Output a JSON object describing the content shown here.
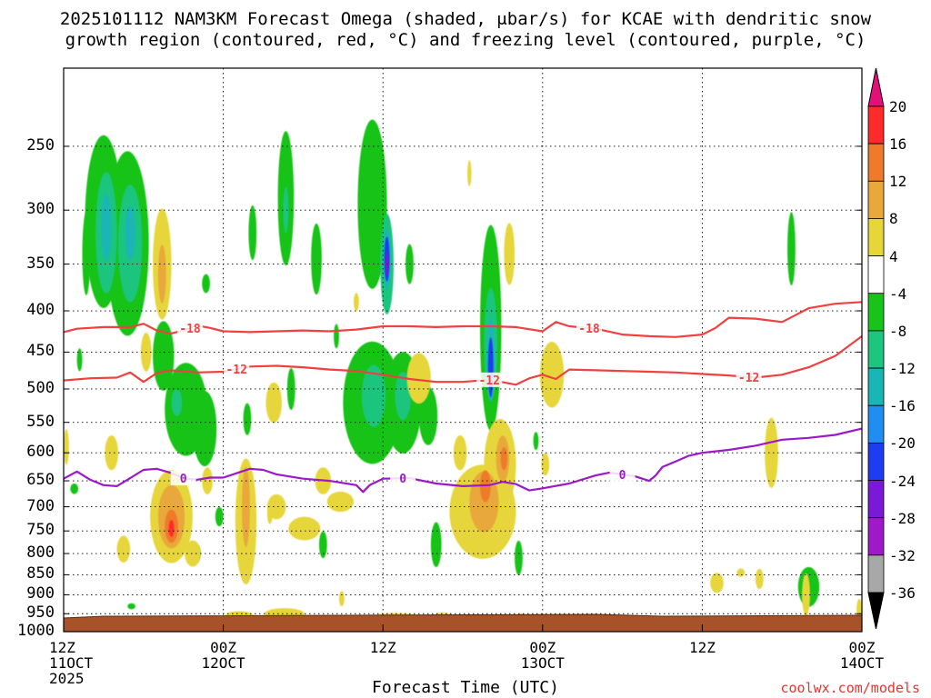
{
  "title_line1": "2025101112 NAM3KM Forecast Omega (shaded, μbar/s) for KCAE with dendritic snow",
  "title_line2": "growth region (contoured, red, °C) and freezing level (contoured, purple, °C)",
  "credit": "coolwx.com/models",
  "chart_data": {
    "type": "heatmap",
    "title": "2025101112 NAM3KM Forecast Omega (shaded, μbar/s) for KCAE with dendritic snow growth region (contoured, red, °C) and freezing level (contoured, purple, °C)",
    "xlabel": "Forecast Time (UTC)",
    "ylabel": "",
    "y_scale": "log-pressure (hPa)",
    "ylim": [
      1000,
      200
    ],
    "x_ticks": [
      {
        "hour": 0,
        "line1": "12Z",
        "line2": "11OCT",
        "line3": "2025"
      },
      {
        "hour": 12,
        "line1": "00Z",
        "line2": "12OCT",
        "line3": ""
      },
      {
        "hour": 24,
        "line1": "12Z",
        "line2": "",
        "line3": ""
      },
      {
        "hour": 36,
        "line1": "00Z",
        "line2": "13OCT",
        "line3": ""
      },
      {
        "hour": 48,
        "line1": "12Z",
        "line2": "",
        "line3": ""
      },
      {
        "hour": 60,
        "line1": "00Z",
        "line2": "14OCT",
        "line3": ""
      }
    ],
    "y_ticks": [
      "250",
      "300",
      "350",
      "400",
      "450",
      "500",
      "550",
      "600",
      "650",
      "700",
      "750",
      "800",
      "850",
      "900",
      "950",
      "1000"
    ],
    "colorbar": {
      "labels": [
        "20",
        "16",
        "12",
        "8",
        "4",
        "-4",
        "-8",
        "-12",
        "-16",
        "-20",
        "-24",
        "-28",
        "-32",
        "-36"
      ],
      "colors": [
        "#ff2a2a",
        "#ee7a2a",
        "#e8a83a",
        "#e6d63a",
        "#ffffff",
        "#19c319",
        "#1dc57e",
        "#1ab5b5",
        "#1f8ef0",
        "#1c3df0",
        "#7a19d8",
        "#a019c8",
        "#a8a8a8"
      ],
      "top_arrow_color": "#e4107a",
      "bottom_arrow_color": "#000000"
    },
    "contours": [
      {
        "label": "-18",
        "color": "#f04040",
        "points": [
          [
            0,
            425
          ],
          [
            1,
            421
          ],
          [
            3,
            419
          ],
          [
            5,
            419
          ],
          [
            6,
            415
          ],
          [
            7,
            423
          ],
          [
            8,
            427
          ],
          [
            9,
            423
          ],
          [
            10,
            417
          ],
          [
            11,
            420
          ],
          [
            12,
            424
          ],
          [
            14,
            425
          ],
          [
            16,
            424
          ],
          [
            18,
            423
          ],
          [
            20,
            424
          ],
          [
            22,
            422
          ],
          [
            24,
            418
          ],
          [
            26,
            418
          ],
          [
            28,
            419
          ],
          [
            30,
            418
          ],
          [
            32,
            418
          ],
          [
            34,
            419
          ],
          [
            36,
            424
          ],
          [
            37,
            413
          ],
          [
            38,
            418
          ],
          [
            40,
            421
          ],
          [
            42,
            428
          ],
          [
            44,
            430
          ],
          [
            46,
            431
          ],
          [
            48,
            428
          ],
          [
            49,
            420
          ],
          [
            50,
            408
          ],
          [
            52,
            409
          ],
          [
            54,
            413
          ],
          [
            55,
            405
          ],
          [
            56,
            397
          ],
          [
            58,
            392
          ],
          [
            60,
            390
          ]
        ],
        "label_hours": [
          9.5,
          39.5
        ]
      },
      {
        "label": "-12",
        "color": "#f04040",
        "points": [
          [
            0,
            488
          ],
          [
            2,
            485
          ],
          [
            4,
            484
          ],
          [
            5,
            477
          ],
          [
            6,
            490
          ],
          [
            7,
            478
          ],
          [
            8,
            474
          ],
          [
            10,
            477
          ],
          [
            12,
            476
          ],
          [
            14,
            469
          ],
          [
            16,
            468
          ],
          [
            18,
            470
          ],
          [
            20,
            473
          ],
          [
            22,
            475
          ],
          [
            24,
            480
          ],
          [
            26,
            486
          ],
          [
            28,
            490
          ],
          [
            30,
            490
          ],
          [
            32,
            487
          ],
          [
            34,
            494
          ],
          [
            35,
            485
          ],
          [
            36,
            480
          ],
          [
            37,
            486
          ],
          [
            38,
            473
          ],
          [
            40,
            474
          ],
          [
            42,
            475
          ],
          [
            44,
            476
          ],
          [
            46,
            477
          ],
          [
            48,
            479
          ],
          [
            50,
            481
          ],
          [
            52,
            484
          ],
          [
            54,
            480
          ],
          [
            55,
            475
          ],
          [
            56,
            470
          ],
          [
            58,
            455
          ],
          [
            60,
            430
          ]
        ],
        "label_hours": [
          13,
          32,
          51.5
        ]
      },
      {
        "label": "0",
        "color": "#9b19c8",
        "points": [
          [
            0,
            646
          ],
          [
            1,
            633
          ],
          [
            2,
            648
          ],
          [
            3,
            658
          ],
          [
            4,
            660
          ],
          [
            5,
            645
          ],
          [
            6,
            630
          ],
          [
            7,
            628
          ],
          [
            8,
            635
          ],
          [
            9,
            645
          ],
          [
            10,
            648
          ],
          [
            11,
            644
          ],
          [
            12,
            644
          ],
          [
            13,
            636
          ],
          [
            14,
            628
          ],
          [
            15,
            630
          ],
          [
            16,
            638
          ],
          [
            18,
            646
          ],
          [
            20,
            650
          ],
          [
            21,
            654
          ],
          [
            22,
            658
          ],
          [
            22.5,
            671
          ],
          [
            23,
            658
          ],
          [
            24,
            646
          ],
          [
            26,
            645
          ],
          [
            28,
            655
          ],
          [
            30,
            660
          ],
          [
            32,
            658
          ],
          [
            33,
            652
          ],
          [
            34,
            656
          ],
          [
            35,
            668
          ],
          [
            36,
            664
          ],
          [
            38,
            655
          ],
          [
            40,
            640
          ],
          [
            41,
            635
          ],
          [
            42,
            638
          ],
          [
            43,
            642
          ],
          [
            44,
            650
          ],
          [
            44.5,
            640
          ],
          [
            45,
            625
          ],
          [
            46,
            615
          ],
          [
            47,
            605
          ],
          [
            48,
            600
          ],
          [
            50,
            595
          ],
          [
            52,
            588
          ],
          [
            54,
            578
          ],
          [
            56,
            575
          ],
          [
            58,
            570
          ],
          [
            60,
            560
          ]
        ],
        "label_hours": [
          9,
          25.5,
          42
        ]
      }
    ]
  }
}
